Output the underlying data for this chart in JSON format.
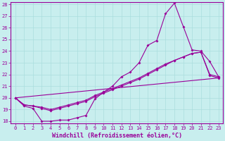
{
  "xlabel": "Windchill (Refroidissement éolien,°C)",
  "xlim": [
    -0.5,
    23.5
  ],
  "ylim": [
    17.8,
    28.2
  ],
  "yticks": [
    18,
    19,
    20,
    21,
    22,
    23,
    24,
    25,
    26,
    27,
    28
  ],
  "xticks": [
    0,
    1,
    2,
    3,
    4,
    5,
    6,
    7,
    8,
    9,
    10,
    11,
    12,
    13,
    14,
    15,
    16,
    17,
    18,
    19,
    20,
    21,
    22,
    23
  ],
  "bg_color": "#c8eeee",
  "grid_color": "#aadddd",
  "line_color": "#990099",
  "series1_x": [
    0,
    1,
    2,
    3,
    4,
    5,
    6,
    7,
    8,
    9,
    10,
    11,
    12,
    13,
    14,
    15,
    16,
    17,
    18,
    19,
    20,
    21,
    22,
    23
  ],
  "series1_y": [
    20.0,
    19.3,
    19.1,
    18.0,
    18.0,
    18.1,
    18.1,
    18.3,
    18.5,
    19.9,
    20.5,
    21.0,
    21.8,
    22.2,
    23.0,
    24.5,
    24.9,
    27.2,
    28.1,
    26.1,
    24.1,
    24.0,
    23.1,
    21.8
  ],
  "series2_x": [
    0,
    1,
    2,
    3,
    4,
    5,
    6,
    7,
    8,
    9,
    10,
    11,
    12,
    13,
    14,
    15,
    16,
    17,
    18,
    19,
    20,
    21,
    22,
    23
  ],
  "series2_y": [
    20.0,
    19.4,
    19.3,
    19.1,
    18.9,
    19.1,
    19.3,
    19.5,
    19.7,
    20.1,
    20.4,
    20.7,
    21.0,
    21.3,
    21.6,
    22.0,
    22.4,
    22.8,
    23.2,
    23.5,
    23.8,
    23.9,
    22.0,
    21.8
  ],
  "series3_x": [
    0,
    1,
    2,
    3,
    4,
    5,
    6,
    7,
    8,
    9,
    10,
    11,
    12,
    13,
    14,
    15,
    16,
    17,
    18,
    19,
    20,
    21,
    22,
    23
  ],
  "series3_y": [
    20.0,
    19.4,
    19.3,
    19.2,
    19.0,
    19.2,
    19.4,
    19.6,
    19.8,
    20.2,
    20.5,
    20.8,
    21.1,
    21.4,
    21.7,
    22.1,
    22.5,
    22.9,
    23.2,
    23.5,
    23.8,
    23.9,
    21.9,
    21.7
  ],
  "series4_x": [
    0,
    23
  ],
  "series4_y": [
    20.0,
    21.7
  ],
  "marker": "D",
  "markersize": 2,
  "linewidth": 0.8,
  "tick_fontsize": 5,
  "xlabel_fontsize": 6,
  "ylabel_fontsize": 5
}
